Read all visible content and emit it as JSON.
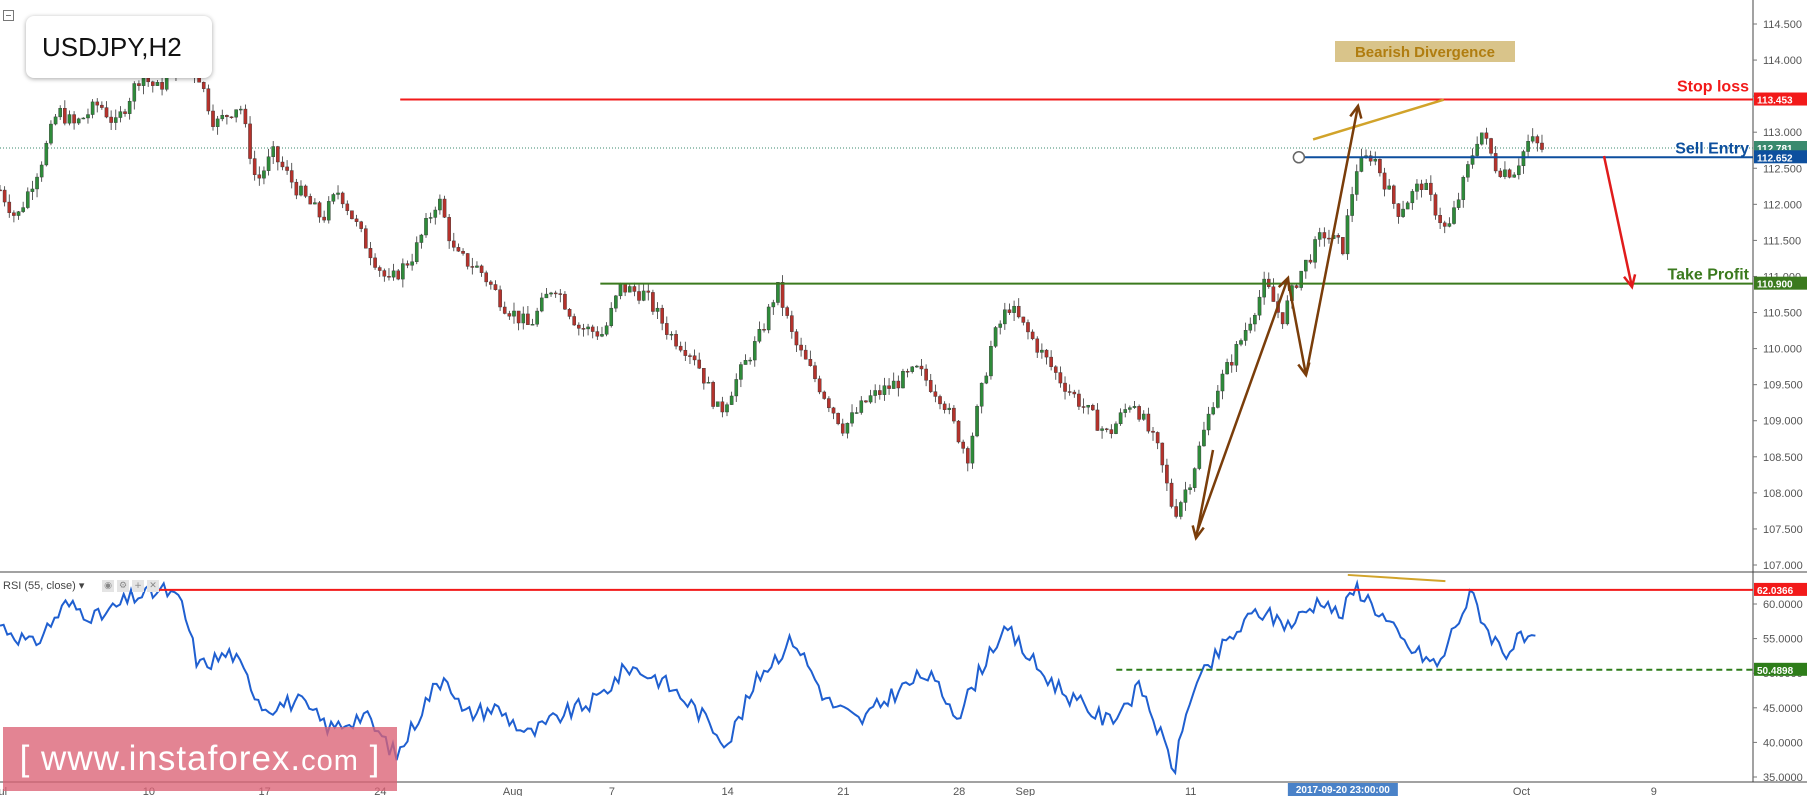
{
  "symbol": "USDJPY,H2",
  "indicator": {
    "name": "RSI (55, close)"
  },
  "watermark": {
    "left_bracket": "[",
    "text": "www.instaforex.",
    "suffix": "com",
    "right_bracket": "]"
  },
  "annotations": {
    "bearish_divergence": "Bearish Divergence",
    "stop_loss": "Stop loss",
    "sell_entry": "Sell Entry",
    "take_profit": "Take Profit"
  },
  "colors": {
    "stop_loss": "#f21a1a",
    "sell_entry": "#0d4f9e",
    "take_profit": "#3b7a1e",
    "rsi_line": "#1f5fd0",
    "rsi_support": "#2e7d1a",
    "divergence": "#d1a32a",
    "arrow_brown": "#7a3d0a",
    "arrow_red": "#e01b1b",
    "candle_up": "#2e8b3a",
    "candle_down": "#b5322c",
    "watermark": "#db6274"
  },
  "chart_data": [
    {
      "type": "candlestick",
      "title": "USDJPY,H2",
      "ylim": [
        106.9,
        114.7
      ],
      "y_ticks": [
        "114.500",
        "114.000",
        "113.500",
        "113.000",
        "112.500",
        "112.000",
        "111.500",
        "111.000",
        "110.500",
        "110.000",
        "109.500",
        "109.000",
        "108.500",
        "108.000",
        "107.500",
        "107.000"
      ],
      "x_ticks": [
        "Jul",
        "10",
        "17",
        "24",
        "Aug",
        "7",
        "14",
        "21",
        "28",
        "Sep",
        "11",
        "18",
        "2017-09-20 23:00:00",
        "Oct",
        "9"
      ],
      "x_tick_days": [
        0,
        9,
        16,
        23,
        31,
        37,
        44,
        51,
        58,
        62,
        72,
        79,
        81.2,
        92,
        100
      ],
      "x_range_days": [
        0,
        106
      ],
      "price_path": [
        {
          "d": 0,
          "p": 112.2
        },
        {
          "d": 1,
          "p": 111.8
        },
        {
          "d": 2.5,
          "p": 112.6
        },
        {
          "d": 3.5,
          "p": 113.3
        },
        {
          "d": 4.5,
          "p": 113.1
        },
        {
          "d": 6,
          "p": 113.4
        },
        {
          "d": 7,
          "p": 113.1
        },
        {
          "d": 8.5,
          "p": 113.8
        },
        {
          "d": 9.5,
          "p": 113.6
        },
        {
          "d": 11,
          "p": 113.95
        },
        {
          "d": 12,
          "p": 113.8
        },
        {
          "d": 13,
          "p": 113.1
        },
        {
          "d": 14.5,
          "p": 113.4
        },
        {
          "d": 15.5,
          "p": 112.3
        },
        {
          "d": 16.5,
          "p": 112.7
        },
        {
          "d": 18,
          "p": 112.2
        },
        {
          "d": 19.5,
          "p": 111.8
        },
        {
          "d": 20.5,
          "p": 112.2
        },
        {
          "d": 22,
          "p": 111.5
        },
        {
          "d": 23.5,
          "p": 110.9
        },
        {
          "d": 25,
          "p": 111.3
        },
        {
          "d": 26.5,
          "p": 112.1
        },
        {
          "d": 27.5,
          "p": 111.3
        },
        {
          "d": 29,
          "p": 111.1
        },
        {
          "d": 30.5,
          "p": 110.6
        },
        {
          "d": 32,
          "p": 110.3
        },
        {
          "d": 33.5,
          "p": 110.9
        },
        {
          "d": 35,
          "p": 110.3
        },
        {
          "d": 36.5,
          "p": 110.2
        },
        {
          "d": 37.5,
          "p": 110.85
        },
        {
          "d": 39,
          "p": 110.75
        },
        {
          "d": 40.5,
          "p": 110.2
        },
        {
          "d": 42,
          "p": 109.9
        },
        {
          "d": 43.5,
          "p": 109.1
        },
        {
          "d": 44.5,
          "p": 109.55
        },
        {
          "d": 46,
          "p": 110.2
        },
        {
          "d": 47,
          "p": 110.85
        },
        {
          "d": 48,
          "p": 110.1
        },
        {
          "d": 49.5,
          "p": 109.5
        },
        {
          "d": 51,
          "p": 108.9
        },
        {
          "d": 52.5,
          "p": 109.3
        },
        {
          "d": 54,
          "p": 109.5
        },
        {
          "d": 55.5,
          "p": 109.7
        },
        {
          "d": 57,
          "p": 109.3
        },
        {
          "d": 58.5,
          "p": 108.5
        },
        {
          "d": 60,
          "p": 110.1
        },
        {
          "d": 61,
          "p": 110.6
        },
        {
          "d": 62.5,
          "p": 110.1
        },
        {
          "d": 64,
          "p": 109.6
        },
        {
          "d": 65.5,
          "p": 109.2
        },
        {
          "d": 67,
          "p": 108.8
        },
        {
          "d": 68.5,
          "p": 109.3
        },
        {
          "d": 70,
          "p": 108.6
        },
        {
          "d": 71,
          "p": 107.7
        },
        {
          "d": 72,
          "p": 108.2
        },
        {
          "d": 73.5,
          "p": 109.4
        },
        {
          "d": 75,
          "p": 110.1
        },
        {
          "d": 76.5,
          "p": 110.9
        },
        {
          "d": 77.5,
          "p": 110.4
        },
        {
          "d": 78.5,
          "p": 111.0
        },
        {
          "d": 80,
          "p": 111.6
        },
        {
          "d": 81.2,
          "p": 111.4
        },
        {
          "d": 82,
          "p": 112.5
        },
        {
          "d": 83,
          "p": 112.7
        },
        {
          "d": 84.5,
          "p": 111.9
        },
        {
          "d": 86,
          "p": 112.3
        },
        {
          "d": 87.5,
          "p": 111.6
        },
        {
          "d": 88.5,
          "p": 112.3
        },
        {
          "d": 89.5,
          "p": 113.05
        },
        {
          "d": 90.5,
          "p": 112.5
        },
        {
          "d": 91.5,
          "p": 112.45
        },
        {
          "d": 92.5,
          "p": 112.9
        },
        {
          "d": 93.5,
          "p": 112.72
        }
      ],
      "levels": [
        {
          "name": "Stop loss",
          "value": 113.453,
          "label": "113.453"
        },
        {
          "name": "Sell Entry",
          "value": 112.652,
          "label": "112.652"
        },
        {
          "name": "Take Profit",
          "value": 110.9,
          "label": "110.900"
        },
        {
          "name": "Last price",
          "value": 112.781,
          "label": "112.781"
        },
        {
          "name": "Countdown",
          "label": "01:06:55"
        }
      ]
    },
    {
      "type": "line",
      "title": "RSI (55, close)",
      "ylim": [
        34.5,
        65.5
      ],
      "y_ticks": [
        "60.0000",
        "55.0000",
        "50.0000",
        "45.0000",
        "40.0000",
        "35.0000"
      ],
      "rsi_path": [
        {
          "d": 0,
          "v": 57
        },
        {
          "d": 2,
          "v": 54
        },
        {
          "d": 4,
          "v": 60
        },
        {
          "d": 6,
          "v": 58
        },
        {
          "d": 8,
          "v": 61
        },
        {
          "d": 10,
          "v": 62
        },
        {
          "d": 11,
          "v": 60
        },
        {
          "d": 12,
          "v": 51
        },
        {
          "d": 14,
          "v": 53
        },
        {
          "d": 16,
          "v": 45
        },
        {
          "d": 18,
          "v": 46
        },
        {
          "d": 20,
          "v": 42
        },
        {
          "d": 22,
          "v": 44
        },
        {
          "d": 24,
          "v": 38
        },
        {
          "d": 26,
          "v": 47
        },
        {
          "d": 27,
          "v": 50
        },
        {
          "d": 28,
          "v": 44
        },
        {
          "d": 30,
          "v": 45
        },
        {
          "d": 32,
          "v": 41
        },
        {
          "d": 34,
          "v": 44
        },
        {
          "d": 36,
          "v": 46
        },
        {
          "d": 38,
          "v": 51
        },
        {
          "d": 40,
          "v": 49
        },
        {
          "d": 42,
          "v": 45
        },
        {
          "d": 44,
          "v": 40
        },
        {
          "d": 46,
          "v": 50
        },
        {
          "d": 48,
          "v": 55
        },
        {
          "d": 50,
          "v": 46
        },
        {
          "d": 52,
          "v": 43
        },
        {
          "d": 54,
          "v": 47
        },
        {
          "d": 56,
          "v": 50
        },
        {
          "d": 58,
          "v": 44
        },
        {
          "d": 60,
          "v": 54
        },
        {
          "d": 61,
          "v": 56
        },
        {
          "d": 63,
          "v": 50
        },
        {
          "d": 65,
          "v": 46
        },
        {
          "d": 67,
          "v": 43
        },
        {
          "d": 69,
          "v": 48
        },
        {
          "d": 71,
          "v": 36
        },
        {
          "d": 72,
          "v": 47
        },
        {
          "d": 74,
          "v": 54
        },
        {
          "d": 76,
          "v": 59
        },
        {
          "d": 78,
          "v": 57
        },
        {
          "d": 80,
          "v": 61
        },
        {
          "d": 81,
          "v": 58
        },
        {
          "d": 82,
          "v": 62.5
        },
        {
          "d": 83,
          "v": 60
        },
        {
          "d": 85,
          "v": 54
        },
        {
          "d": 87,
          "v": 51
        },
        {
          "d": 88,
          "v": 57
        },
        {
          "d": 89,
          "v": 61.5
        },
        {
          "d": 90,
          "v": 56
        },
        {
          "d": 91,
          "v": 53
        },
        {
          "d": 92,
          "v": 55
        },
        {
          "d": 93,
          "v": 54
        }
      ],
      "levels": [
        {
          "name": "RSI resistance",
          "value": 62.0366,
          "label": "62.0366"
        },
        {
          "name": "RSI support",
          "value": 50.4898,
          "label": "50.4898"
        }
      ]
    }
  ]
}
